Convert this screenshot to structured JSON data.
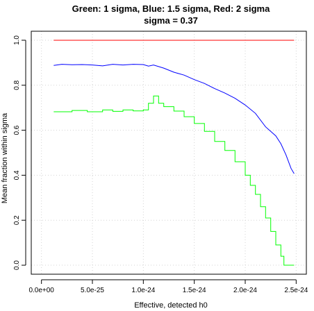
{
  "chart_data": {
    "type": "line",
    "title": "Green: 1 sigma, Blue: 1.5 sigma, Red: 2 sigma",
    "subtitle": "sigma =  0.37",
    "xlabel": "Effective, detected h0",
    "ylabel": "Mean fraction within sigma",
    "xlim": [
      -1e-25,
      2.6e-24
    ],
    "ylim": [
      -0.04,
      1.04
    ],
    "x_ticks": [
      0,
      5e-25,
      1e-24,
      1.5e-24,
      2e-24,
      2.5e-24
    ],
    "x_tick_labels": [
      "0.0e+00",
      "5.0e-25",
      "1.0e-24",
      "1.5e-24",
      "2.0e-24",
      "2.5e-24"
    ],
    "y_ticks": [
      0,
      0.2,
      0.4,
      0.6,
      0.8,
      1.0
    ],
    "y_tick_labels": [
      "0.0",
      "0.2",
      "0.4",
      "0.6",
      "0.8",
      "1.0"
    ],
    "grid": true,
    "series": [
      {
        "color": "#ff0000",
        "step": false,
        "points": [
          [
            1.2e-25,
            1.0
          ],
          [
            2.48e-24,
            1.0
          ]
        ]
      },
      {
        "color": "#0000ff",
        "step": false,
        "points": [
          [
            1.2e-25,
            0.888
          ],
          [
            2e-25,
            0.893
          ],
          [
            3e-25,
            0.891
          ],
          [
            4e-25,
            0.892
          ],
          [
            5e-25,
            0.89
          ],
          [
            6e-25,
            0.886
          ],
          [
            7e-25,
            0.893
          ],
          [
            8e-25,
            0.89
          ],
          [
            9e-25,
            0.893
          ],
          [
            1e-24,
            0.892
          ],
          [
            1.05e-24,
            0.885
          ],
          [
            1.1e-24,
            0.89
          ],
          [
            1.2e-24,
            0.876
          ],
          [
            1.3e-24,
            0.858
          ],
          [
            1.4e-24,
            0.845
          ],
          [
            1.5e-24,
            0.825
          ],
          [
            1.6e-24,
            0.808
          ],
          [
            1.7e-24,
            0.785
          ],
          [
            1.8e-24,
            0.765
          ],
          [
            1.9e-24,
            0.742
          ],
          [
            2e-24,
            0.712
          ],
          [
            2.1e-24,
            0.675
          ],
          [
            2.2e-24,
            0.615
          ],
          [
            2.25e-24,
            0.595
          ],
          [
            2.3e-24,
            0.575
          ],
          [
            2.35e-24,
            0.54
          ],
          [
            2.4e-24,
            0.49
          ],
          [
            2.45e-24,
            0.43
          ],
          [
            2.48e-24,
            0.407
          ]
        ]
      },
      {
        "color": "#00ff00",
        "step": true,
        "points": [
          [
            1.2e-25,
            0.682
          ],
          [
            3e-25,
            0.688
          ],
          [
            4.5e-25,
            0.682
          ],
          [
            6e-25,
            0.69
          ],
          [
            7e-25,
            0.684
          ],
          [
            8e-25,
            0.69
          ],
          [
            9e-25,
            0.686
          ],
          [
            1e-24,
            0.69
          ],
          [
            1.05e-24,
            0.72
          ],
          [
            1.1e-24,
            0.752
          ],
          [
            1.15e-24,
            0.72
          ],
          [
            1.2e-24,
            0.705
          ],
          [
            1.3e-24,
            0.685
          ],
          [
            1.4e-24,
            0.66
          ],
          [
            1.5e-24,
            0.63
          ],
          [
            1.6e-24,
            0.595
          ],
          [
            1.7e-24,
            0.55
          ],
          [
            1.8e-24,
            0.51
          ],
          [
            1.9e-24,
            0.46
          ],
          [
            2e-24,
            0.4
          ],
          [
            2.05e-24,
            0.355
          ],
          [
            2.1e-24,
            0.315
          ],
          [
            2.15e-24,
            0.26
          ],
          [
            2.2e-24,
            0.21
          ],
          [
            2.25e-24,
            0.15
          ],
          [
            2.3e-24,
            0.09
          ],
          [
            2.35e-24,
            0.04
          ],
          [
            2.38e-24,
            0.0
          ],
          [
            2.48e-24,
            0.0
          ]
        ]
      }
    ]
  }
}
